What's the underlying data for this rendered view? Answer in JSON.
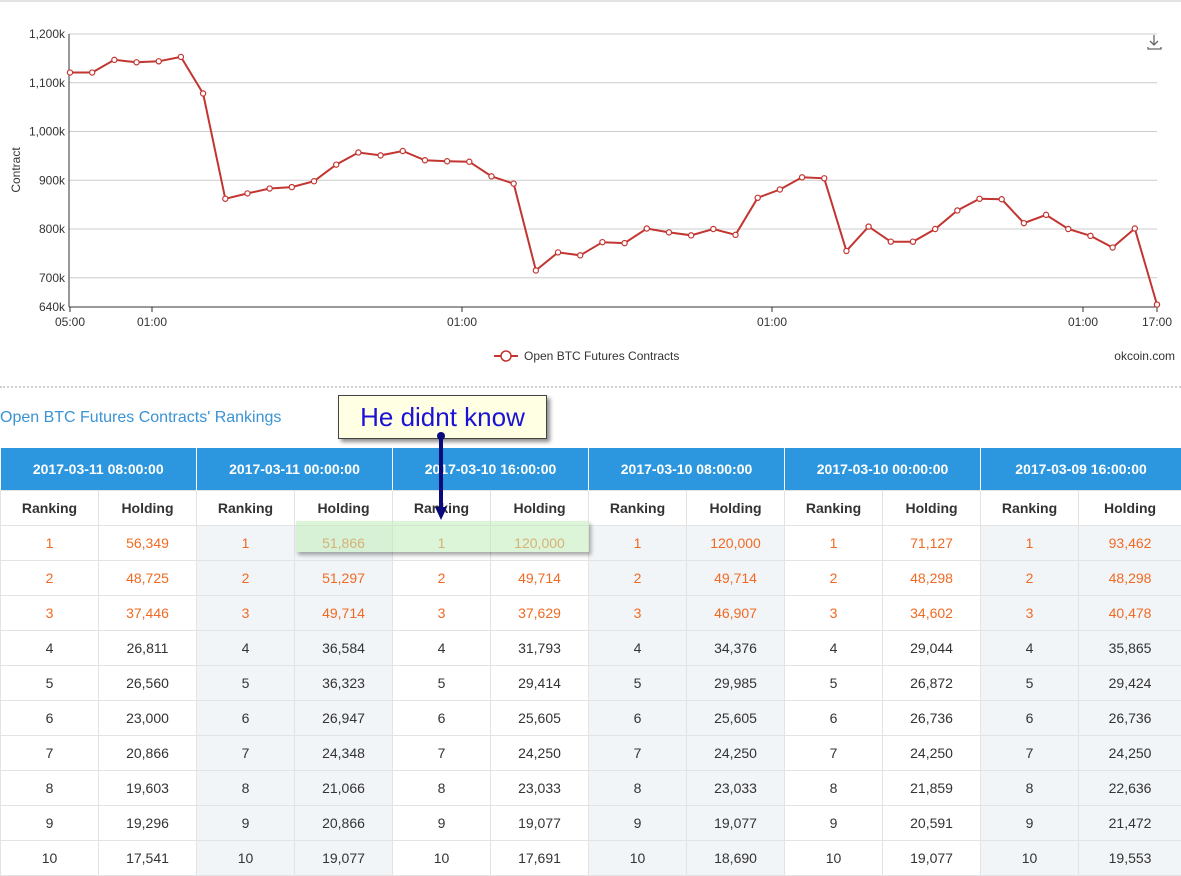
{
  "chart_data": {
    "type": "line",
    "ylabel": "Contract",
    "ylim": [
      640000,
      1200000
    ],
    "y_ticks": [
      "1,200k",
      "1,100k",
      "1,000k",
      "900k",
      "800k",
      "700k",
      "640k"
    ],
    "x_ticks": [
      "05:00",
      "01:00",
      "01:00",
      "01:00",
      "01:00",
      "17:00"
    ],
    "series": [
      {
        "name": "Open BTC Futures Contracts",
        "color": "#c23531",
        "values": [
          1121000,
          1121000,
          1147000,
          1142000,
          1144000,
          1153000,
          1078000,
          862000,
          873000,
          883000,
          886000,
          898000,
          932000,
          957000,
          951000,
          960000,
          941000,
          939000,
          938000,
          908000,
          893000,
          715000,
          752000,
          746000,
          773000,
          771000,
          801000,
          793000,
          787000,
          800000,
          788000,
          864000,
          881000,
          906000,
          904000,
          755000,
          805000,
          774000,
          774000,
          800000,
          838000,
          862000,
          861000,
          812000,
          829000,
          800000,
          786000,
          762000,
          801000,
          645000
        ]
      }
    ],
    "legend_position": "bottom-center",
    "grid": true
  },
  "credit": "okcoin.com",
  "download_icon": "download-icon",
  "rankings": {
    "title": "Open BTC Futures Contracts' Rankings",
    "header_color": "#2c97de",
    "top_color": "#f06a23",
    "rank_label": "Ranking",
    "holding_label": "Holding",
    "dates": [
      "2017-03-11 08:00:00",
      "2017-03-11 00:00:00",
      "2017-03-10 16:00:00",
      "2017-03-10 08:00:00",
      "2017-03-10 00:00:00",
      "2017-03-09 16:00:00"
    ],
    "rows": [
      [
        "1",
        "56,349",
        "1",
        "51,866",
        "1",
        "120,000",
        "1",
        "120,000",
        "1",
        "71,127",
        "1",
        "93,462"
      ],
      [
        "2",
        "48,725",
        "2",
        "51,297",
        "2",
        "49,714",
        "2",
        "49,714",
        "2",
        "48,298",
        "2",
        "48,298"
      ],
      [
        "3",
        "37,446",
        "3",
        "49,714",
        "3",
        "37,629",
        "3",
        "46,907",
        "3",
        "34,602",
        "3",
        "40,478"
      ],
      [
        "4",
        "26,811",
        "4",
        "36,584",
        "4",
        "31,793",
        "4",
        "34,376",
        "4",
        "29,044",
        "4",
        "35,865"
      ],
      [
        "5",
        "26,560",
        "5",
        "36,323",
        "5",
        "29,414",
        "5",
        "29,985",
        "5",
        "26,872",
        "5",
        "29,424"
      ],
      [
        "6",
        "23,000",
        "6",
        "26,947",
        "6",
        "25,605",
        "6",
        "25,605",
        "6",
        "26,736",
        "6",
        "26,736"
      ],
      [
        "7",
        "20,866",
        "7",
        "24,348",
        "7",
        "24,250",
        "7",
        "24,250",
        "7",
        "24,250",
        "7",
        "24,250"
      ],
      [
        "8",
        "19,603",
        "8",
        "21,066",
        "8",
        "23,033",
        "8",
        "23,033",
        "8",
        "21,859",
        "8",
        "22,636"
      ],
      [
        "9",
        "19,296",
        "9",
        "20,866",
        "9",
        "19,077",
        "9",
        "19,077",
        "9",
        "20,591",
        "9",
        "21,472"
      ],
      [
        "10",
        "17,541",
        "10",
        "19,077",
        "10",
        "17,691",
        "10",
        "18,690",
        "10",
        "19,077",
        "10",
        "19,553"
      ]
    ]
  },
  "annotation": {
    "text": "He didnt know",
    "text_color": "#1b12d6",
    "arrow_color": "#0a0a7a"
  }
}
